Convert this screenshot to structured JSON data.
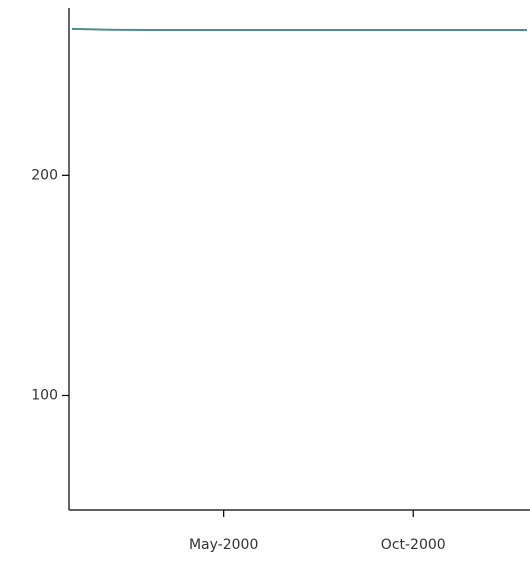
{
  "chart_data": {
    "type": "line",
    "x": [
      "2000-01",
      "2000-02",
      "2000-03",
      "2000-04",
      "2000-05",
      "2000-06",
      "2000-07",
      "2000-08",
      "2000-09",
      "2000-10",
      "2000-11",
      "2000-12",
      "2001-01"
    ],
    "series": [
      {
        "color": "#4f8c8c",
        "values": [
          266.5,
          266.1,
          266,
          266,
          266,
          266,
          266,
          266,
          266,
          266,
          266,
          266,
          266
        ]
      }
    ],
    "xlim": [
      "2000-01",
      "2001-01"
    ],
    "xticks": [
      {
        "value": "2000-05",
        "label": "May-2000"
      },
      {
        "value": "2000-10",
        "label": "Oct-2000"
      }
    ],
    "ylim": [
      48,
      276
    ],
    "yticks": [
      100,
      200
    ],
    "grid": false
  }
}
